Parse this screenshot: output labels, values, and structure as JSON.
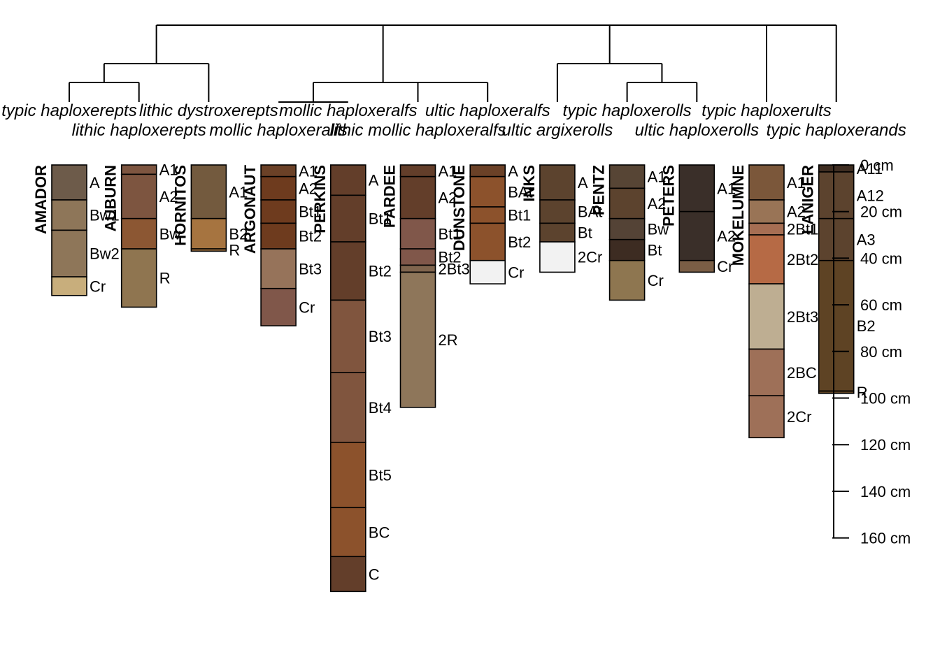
{
  "profiles": [
    {
      "name": "AMADOR",
      "taxon": "typic haploxerepts",
      "horizons": [
        {
          "name": "A",
          "top": 0,
          "bottom": 15,
          "color": "#6D5B4A"
        },
        {
          "name": "Bw1",
          "top": 15,
          "bottom": 28,
          "color": "#8E7659"
        },
        {
          "name": "Bw2",
          "top": 28,
          "bottom": 48,
          "color": "#8E7659"
        },
        {
          "name": "Cr",
          "top": 48,
          "bottom": 56,
          "color": "#C8AE7C"
        }
      ]
    },
    {
      "name": "AUBURN",
      "taxon": "lithic haploxerepts",
      "horizons": [
        {
          "name": "A1",
          "top": 0,
          "bottom": 4,
          "color": "#7D5540"
        },
        {
          "name": "A2",
          "top": 4,
          "bottom": 23,
          "color": "#7D5540"
        },
        {
          "name": "Bw",
          "top": 23,
          "bottom": 36,
          "color": "#8C5733"
        },
        {
          "name": "R",
          "top": 36,
          "bottom": 61,
          "color": "#8F7550"
        }
      ]
    },
    {
      "name": "HORNITOS",
      "taxon": "lithic dystroxerepts",
      "horizons": [
        {
          "name": "A1",
          "top": 0,
          "bottom": 23,
          "color": "#735A3E"
        },
        {
          "name": "B2",
          "top": 23,
          "bottom": 36,
          "color": "#A67440"
        },
        {
          "name": "R",
          "top": 36,
          "bottom": 37,
          "color": "#A67440"
        }
      ]
    },
    {
      "name": "ARGONAUT",
      "taxon": "mollic haploxeralfs",
      "horizons": [
        {
          "name": "A1",
          "top": 0,
          "bottom": 5,
          "color": "#6B4127"
        },
        {
          "name": "A2",
          "top": 5,
          "bottom": 15,
          "color": "#6E3B1E"
        },
        {
          "name": "Bt1",
          "top": 15,
          "bottom": 25,
          "color": "#6E3B1E"
        },
        {
          "name": "Bt2",
          "top": 25,
          "bottom": 36,
          "color": "#6E3B1E"
        },
        {
          "name": "Bt3",
          "top": 36,
          "bottom": 53,
          "color": "#96735A"
        },
        {
          "name": "Cr",
          "top": 53,
          "bottom": 69,
          "color": "#80574A"
        }
      ]
    },
    {
      "name": "PERKINS",
      "taxon": "mollic haploxeralfs",
      "horizons": [
        {
          "name": "A",
          "top": 0,
          "bottom": 13,
          "color": "#633E2A"
        },
        {
          "name": "Bt1",
          "top": 13,
          "bottom": 33,
          "color": "#633E2A"
        },
        {
          "name": "Bt2",
          "top": 33,
          "bottom": 58,
          "color": "#633E2A"
        },
        {
          "name": "Bt3",
          "top": 58,
          "bottom": 89,
          "color": "#80553E"
        },
        {
          "name": "Bt4",
          "top": 89,
          "bottom": 119,
          "color": "#80553E"
        },
        {
          "name": "Bt5",
          "top": 119,
          "bottom": 147,
          "color": "#8C522C"
        },
        {
          "name": "BC",
          "top": 147,
          "bottom": 168,
          "color": "#8C522C"
        },
        {
          "name": "C",
          "top": 168,
          "bottom": 183,
          "color": "#633E2A"
        }
      ]
    },
    {
      "name": "PARDEE",
      "taxon": "lithic mollic haploxeralfs",
      "horizons": [
        {
          "name": "A1",
          "top": 0,
          "bottom": 5,
          "color": "#633E2A"
        },
        {
          "name": "A2",
          "top": 5,
          "bottom": 23,
          "color": "#633E2A"
        },
        {
          "name": "Bt1",
          "top": 23,
          "bottom": 36,
          "color": "#80574A"
        },
        {
          "name": "Bt2",
          "top": 36,
          "bottom": 43,
          "color": "#80574A"
        },
        {
          "name": "2Bt3",
          "top": 43,
          "bottom": 46,
          "color": "#80654E"
        },
        {
          "name": "2R",
          "top": 46,
          "bottom": 104,
          "color": "#8E765A"
        }
      ]
    },
    {
      "name": "DUNSTONE",
      "taxon": "ultic haploxeralfs",
      "horizons": [
        {
          "name": "A",
          "top": 0,
          "bottom": 5,
          "color": "#6B4127"
        },
        {
          "name": "BAt",
          "top": 5,
          "bottom": 18,
          "color": "#8C522C"
        },
        {
          "name": "Bt1",
          "top": 18,
          "bottom": 25,
          "color": "#8C522C"
        },
        {
          "name": "Bt2",
          "top": 25,
          "bottom": 41,
          "color": "#8C522C"
        },
        {
          "name": "Cr",
          "top": 41,
          "bottom": 51,
          "color": "#F2F2F2"
        }
      ]
    },
    {
      "name": "INKS",
      "taxon": "ultic argixerolls",
      "horizons": [
        {
          "name": "A",
          "top": 0,
          "bottom": 15,
          "color": "#5C432E"
        },
        {
          "name": "BAt",
          "top": 15,
          "bottom": 25,
          "color": "#5C432E"
        },
        {
          "name": "Bt",
          "top": 25,
          "bottom": 33,
          "color": "#5C432E"
        },
        {
          "name": "2Cr",
          "top": 33,
          "bottom": 46,
          "color": "#F2F2F2"
        }
      ]
    },
    {
      "name": "PENTZ",
      "taxon": "typic haploxerolls",
      "horizons": [
        {
          "name": "A1",
          "top": 0,
          "bottom": 10,
          "color": "#574535"
        },
        {
          "name": "A2",
          "top": 10,
          "bottom": 23,
          "color": "#5C432E"
        },
        {
          "name": "Bw",
          "top": 23,
          "bottom": 32,
          "color": "#544336"
        },
        {
          "name": "Bt",
          "top": 32,
          "bottom": 41,
          "color": "#3D2C22"
        },
        {
          "name": "Cr",
          "top": 41,
          "bottom": 58,
          "color": "#8E7650"
        }
      ]
    },
    {
      "name": "PETERS",
      "taxon": "ultic haploxerolls",
      "horizons": [
        {
          "name": "A1",
          "top": 0,
          "bottom": 20,
          "color": "#3A2F29"
        },
        {
          "name": "A2",
          "top": 20,
          "bottom": 41,
          "color": "#3A2F29"
        },
        {
          "name": "Cr",
          "top": 41,
          "bottom": 46,
          "color": "#7A5E45"
        }
      ]
    },
    {
      "name": "MOKELUMNE",
      "taxon": "typic haploxerults",
      "horizons": [
        {
          "name": "A1",
          "top": 0,
          "bottom": 15,
          "color": "#7B573A"
        },
        {
          "name": "A2",
          "top": 15,
          "bottom": 25,
          "color": "#997456"
        },
        {
          "name": "2Bt1",
          "top": 25,
          "bottom": 30,
          "color": "#A66E53"
        },
        {
          "name": "2Bt2",
          "top": 30,
          "bottom": 51,
          "color": "#B66A45"
        },
        {
          "name": "2Bt3",
          "top": 51,
          "bottom": 79,
          "color": "#BEAE92"
        },
        {
          "name": "2BC",
          "top": 79,
          "bottom": 99,
          "color": "#9E7058"
        },
        {
          "name": "2Cr",
          "top": 99,
          "bottom": 117,
          "color": "#9E7058"
        }
      ]
    },
    {
      "name": "LANIGER",
      "taxon": "typic haploxerands",
      "horizons": [
        {
          "name": "A11",
          "top": 0,
          "bottom": 3,
          "color": "#3E2D21"
        },
        {
          "name": "A12",
          "top": 3,
          "bottom": 23,
          "color": "#5C432E"
        },
        {
          "name": "A3",
          "top": 23,
          "bottom": 41,
          "color": "#5C432E"
        },
        {
          "name": "B2",
          "top": 41,
          "bottom": 97,
          "color": "#5E4324"
        },
        {
          "name": "R",
          "top": 97,
          "bottom": 98,
          "color": "#5E4324"
        }
      ]
    }
  ],
  "depth_axis": {
    "unit": "cm",
    "ticks": [
      0,
      20,
      40,
      60,
      80,
      100,
      120,
      140,
      160
    ],
    "labels": [
      "0 cm",
      "20 cm",
      "40 cm",
      "60 cm",
      "80 cm",
      "100 cm",
      "120 cm",
      "140 cm",
      "160 cm"
    ]
  }
}
